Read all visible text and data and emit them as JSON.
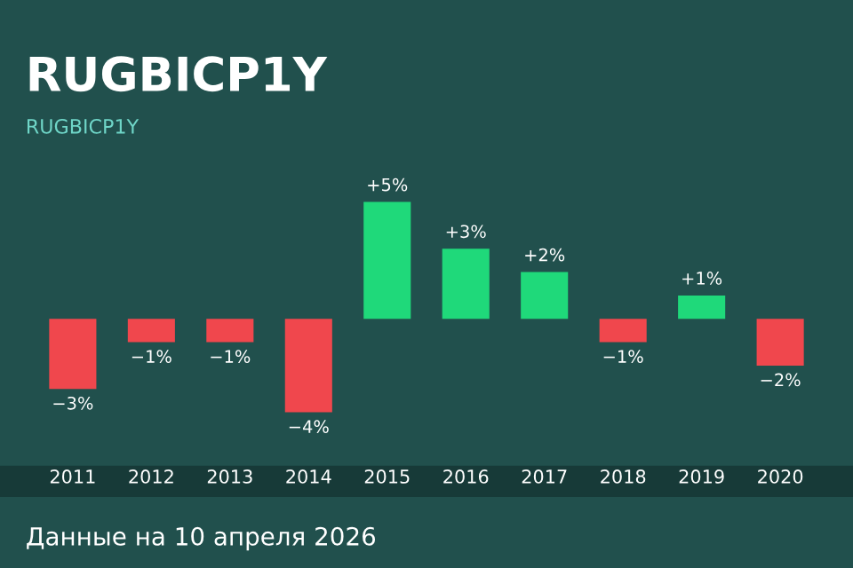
{
  "chart_data": {
    "type": "bar",
    "title": "RUGBICP1Y",
    "subtitle": "RUGBICP1Y",
    "categories": [
      "2011",
      "2012",
      "2013",
      "2014",
      "2015",
      "2016",
      "2017",
      "2018",
      "2019",
      "2020"
    ],
    "values": [
      -3,
      -1,
      -1,
      -4,
      5,
      3,
      2,
      -1,
      1,
      -2
    ],
    "value_labels": [
      "−3%",
      "−1%",
      "−1%",
      "−4%",
      "+5%",
      "+3%",
      "+2%",
      "−1%",
      "+1%",
      "−2%"
    ],
    "colors": [
      "#f0474d",
      "#f0474d",
      "#f0474d",
      "#f0474d",
      "#1fd97a",
      "#1fd97a",
      "#1fd97a",
      "#f0474d",
      "#1fd97a",
      "#f0474d"
    ],
    "tick_labels": "x",
    "grid": false,
    "legend": false,
    "annotations": [
      "Данные на 10 апреля 2026"
    ]
  }
}
